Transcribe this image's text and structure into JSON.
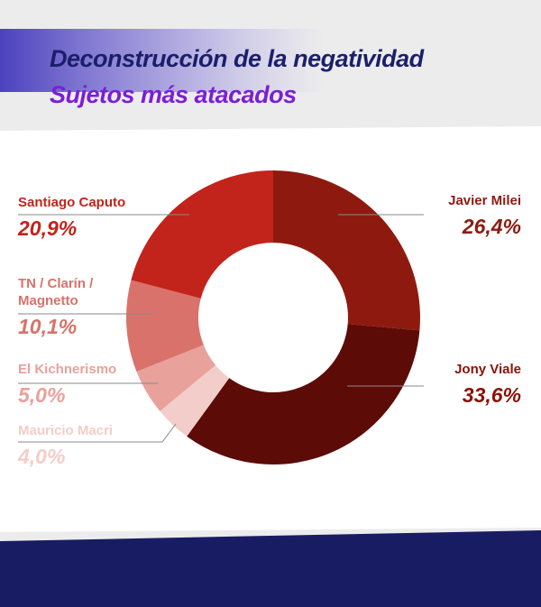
{
  "chart_data": {
    "type": "donut",
    "title": "Deconstrucción de la negatividad",
    "subtitle": "Sujetos más atacados",
    "categories": [
      "Javier Milei",
      "Jony Viale",
      "Mauricio Macri",
      "El Kichnerismo",
      "TN / Clarín / Magnetto",
      "Santiago Caputo"
    ],
    "values": [
      26.4,
      33.6,
      4.0,
      5.0,
      10.1,
      20.9
    ],
    "value_labels": [
      "26,4%",
      "33,6%",
      "4,0%",
      "5,0%",
      "10,1%",
      "20,9%"
    ],
    "colors": [
      "#8e1a0f",
      "#5c0b07",
      "#f3cdc9",
      "#e8a19b",
      "#d9726b",
      "#c2231a"
    ]
  }
}
